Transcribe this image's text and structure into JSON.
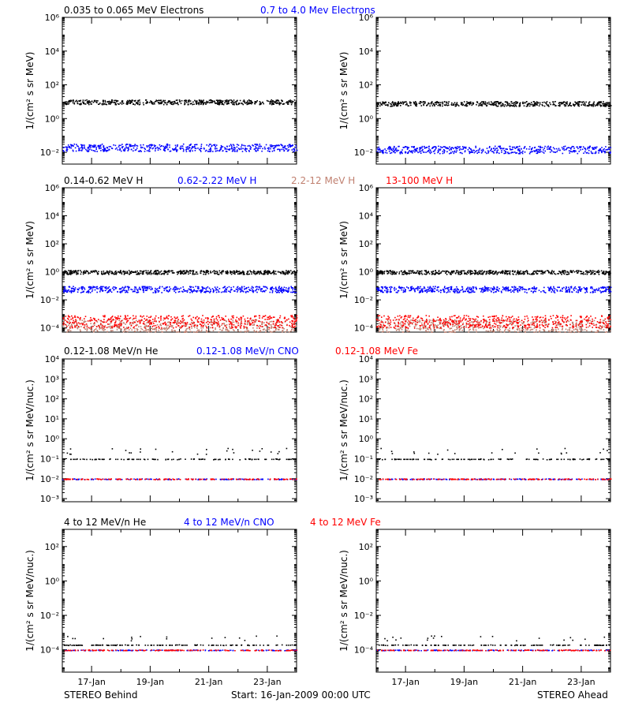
{
  "x_ticks": [
    "17-Jan",
    "19-Jan",
    "21-Jan",
    "23-Jan"
  ],
  "footer": {
    "left": "STEREO Behind",
    "center": "Start: 16-Jan-2009 00:00 UTC",
    "right": "STEREO Ahead"
  },
  "colors": {
    "black": "#000000",
    "blue": "#0000ff",
    "red": "#ff0000",
    "brown": "#c08070"
  },
  "rows": [
    {
      "legend": [
        {
          "text": "0.035 to 0.065 MeV Electrons",
          "color": "#000000"
        },
        {
          "text": "0.7 to 4.0 Mev Electrons",
          "color": "#0000ff"
        }
      ],
      "ylabel": "1/(cm² s sr MeV)",
      "ytick_labels": [
        "10⁻²",
        "10⁰",
        "10²",
        "10⁴",
        "10⁶"
      ]
    },
    {
      "legend": [
        {
          "text": "0.14-0.62 MeV H",
          "color": "#000000"
        },
        {
          "text": "0.62-2.22 MeV H",
          "color": "#0000ff"
        },
        {
          "text": "2.2-12 MeV H",
          "color": "#c08070"
        },
        {
          "text": "13-100 MeV H",
          "color": "#ff0000"
        }
      ],
      "ylabel": "1/(cm² s sr MeV)",
      "ytick_labels": [
        "10⁻⁴",
        "10⁻²",
        "10⁰",
        "10²",
        "10⁴",
        "10⁶"
      ]
    },
    {
      "legend": [
        {
          "text": "0.12-1.08 MeV/n He",
          "color": "#000000"
        },
        {
          "text": "0.12-1.08 MeV/n CNO",
          "color": "#0000ff"
        },
        {
          "text": "0.12-1.08 MeV Fe",
          "color": "#ff0000"
        }
      ],
      "ylabel": "1/(cm² s sr MeV/nuc.)",
      "ytick_labels": [
        "10⁻³",
        "10⁻²",
        "10⁻¹",
        "10⁰",
        "10¹",
        "10²",
        "10³",
        "10⁴"
      ]
    },
    {
      "legend": [
        {
          "text": "4 to 12 MeV/n He",
          "color": "#000000"
        },
        {
          "text": "4 to 12 MeV/n CNO",
          "color": "#0000ff"
        },
        {
          "text": "4 to 12 MeV Fe",
          "color": "#ff0000"
        }
      ],
      "ylabel": "1/(cm² s sr MeV/nuc.)",
      "ytick_labels": [
        "10⁻⁴",
        "10⁻²",
        "10⁰",
        "10²"
      ]
    }
  ],
  "chart_data": [
    {
      "type": "scatter",
      "spacecraft": "STEREO Behind",
      "yscale": "log",
      "ylim": [
        0.002,
        1000000
      ],
      "x_days": [
        0,
        8
      ],
      "series": [
        {
          "name": "0.035 to 0.065 MeV Electrons",
          "color": "#000000",
          "level": 10
        },
        {
          "name": "0.7 to 4.0 Mev Electrons",
          "color": "#0000ff",
          "level": 0.02
        }
      ]
    },
    {
      "type": "scatter",
      "spacecraft": "STEREO Ahead",
      "yscale": "log",
      "ylim": [
        0.002,
        1000000
      ],
      "x_days": [
        0,
        8
      ],
      "series": [
        {
          "name": "0.035 to 0.065 MeV Electrons",
          "color": "#000000",
          "level": 8
        },
        {
          "name": "0.7 to 4.0 Mev Electrons",
          "color": "#0000ff",
          "level": 0.015
        }
      ]
    },
    {
      "type": "scatter",
      "spacecraft": "STEREO Behind",
      "yscale": "log",
      "ylim": [
        5e-05,
        1000000
      ],
      "x_days": [
        0,
        8
      ],
      "series": [
        {
          "name": "0.14-0.62 MeV H",
          "color": "#000000",
          "level": 1
        },
        {
          "name": "0.62-2.22 MeV H",
          "color": "#0000ff",
          "level": 0.06
        },
        {
          "name": "2.2-12 MeV H",
          "color": "#c08070",
          "level": 0.00015
        },
        {
          "name": "13-100 MeV H",
          "color": "#ff0000",
          "level": 0.0003
        }
      ]
    },
    {
      "type": "scatter",
      "spacecraft": "STEREO Ahead",
      "yscale": "log",
      "ylim": [
        5e-05,
        1000000
      ],
      "x_days": [
        0,
        8
      ],
      "series": [
        {
          "name": "0.14-0.62 MeV H",
          "color": "#000000",
          "level": 1
        },
        {
          "name": "0.62-2.22 MeV H",
          "color": "#0000ff",
          "level": 0.06
        },
        {
          "name": "2.2-12 MeV H",
          "color": "#c08070",
          "level": 0.00015
        },
        {
          "name": "13-100 MeV H",
          "color": "#ff0000",
          "level": 0.0003
        }
      ]
    },
    {
      "type": "scatter",
      "spacecraft": "STEREO Behind",
      "yscale": "log",
      "ylim": [
        0.0007,
        10000
      ],
      "x_days": [
        0,
        8
      ],
      "series": [
        {
          "name": "0.12-1.08 MeV/n He",
          "color": "#000000",
          "level": 0.1
        },
        {
          "name": "0.12-1.08 MeV/n CNO",
          "color": "#0000ff",
          "level": 0.01
        },
        {
          "name": "0.12-1.08 MeV Fe",
          "color": "#ff0000",
          "level": 0.01
        }
      ]
    },
    {
      "type": "scatter",
      "spacecraft": "STEREO Ahead",
      "yscale": "log",
      "ylim": [
        0.0007,
        10000
      ],
      "x_days": [
        0,
        8
      ],
      "series": [
        {
          "name": "0.12-1.08 MeV/n He",
          "color": "#000000",
          "level": 0.1
        },
        {
          "name": "0.12-1.08 MeV/n CNO",
          "color": "#0000ff",
          "level": 0.01
        },
        {
          "name": "0.12-1.08 MeV Fe",
          "color": "#ff0000",
          "level": 0.01
        }
      ]
    },
    {
      "type": "scatter",
      "spacecraft": "STEREO Behind",
      "yscale": "log",
      "ylim": [
        5e-06,
        1000
      ],
      "x_days": [
        0,
        8
      ],
      "series": [
        {
          "name": "4 to 12 MeV/n He",
          "color": "#000000",
          "level": 0.0002
        },
        {
          "name": "4 to 12 MeV/n CNO",
          "color": "#0000ff",
          "level": 0.0001
        },
        {
          "name": "4 to 12 MeV Fe",
          "color": "#ff0000",
          "level": 0.0001
        }
      ]
    },
    {
      "type": "scatter",
      "spacecraft": "STEREO Ahead",
      "yscale": "log",
      "ylim": [
        5e-06,
        1000
      ],
      "x_days": [
        0,
        8
      ],
      "series": [
        {
          "name": "4 to 12 MeV/n He",
          "color": "#000000",
          "level": 0.0002
        },
        {
          "name": "4 to 12 MeV/n CNO",
          "color": "#0000ff",
          "level": 0.0001
        },
        {
          "name": "4 to 12 MeV Fe",
          "color": "#ff0000",
          "level": 0.0001
        }
      ]
    }
  ]
}
